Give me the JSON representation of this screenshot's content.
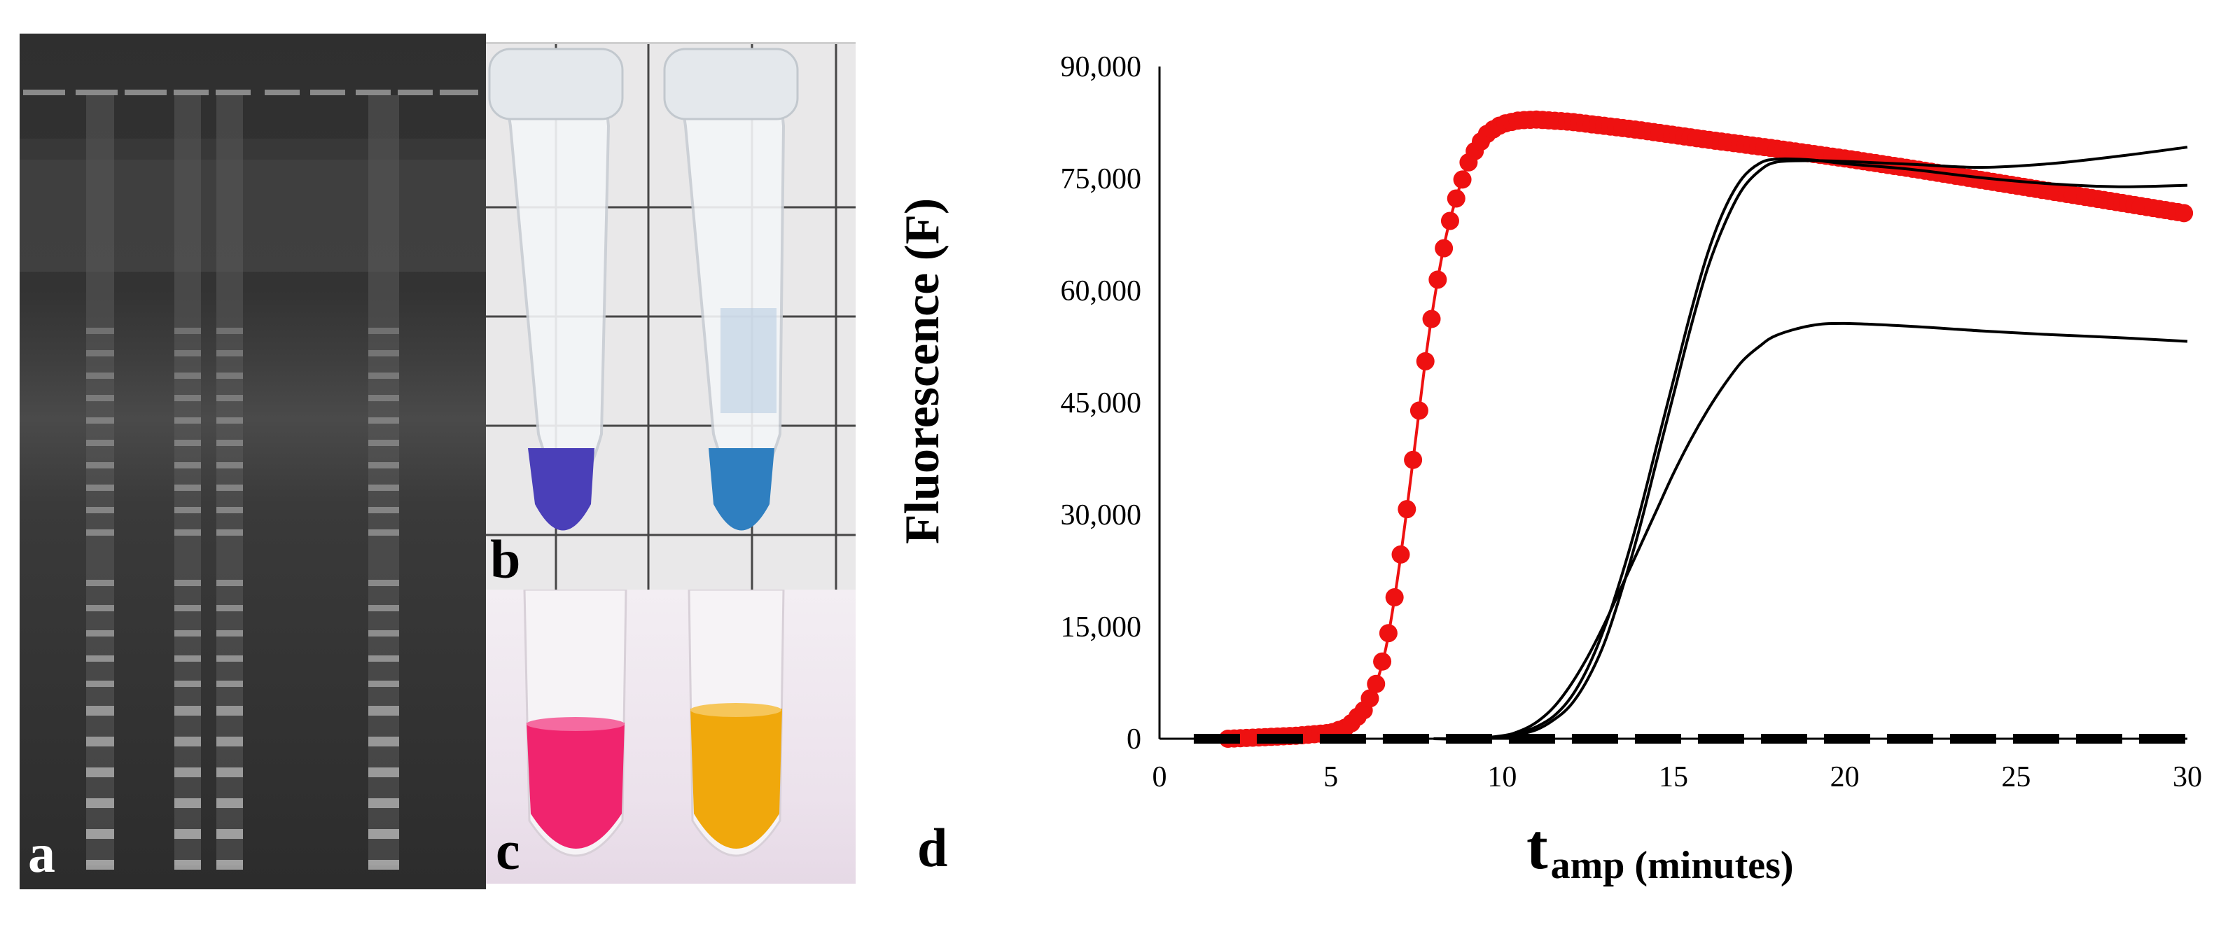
{
  "panels": {
    "a": {
      "letter": "a"
    },
    "b": {
      "letter": "b"
    },
    "c": {
      "letter": "c"
    },
    "d": {
      "letter": "d"
    }
  },
  "colors": {
    "gel_background": "#2f2f2f",
    "tube_blue_left": "#4a3fb8",
    "tube_blue_right": "#2f7fc0",
    "tube_pink": "#f0246e",
    "tube_yellow": "#f0a80c",
    "red_series": "#ee1111",
    "black_series": "#000000"
  },
  "chart_data": {
    "type": "line",
    "title": "",
    "xlabel_main": "t",
    "xlabel_sub": "amp (minutes)",
    "ylabel": "Fluorescence  (F)",
    "xlim": [
      0,
      30
    ],
    "ylim": [
      0,
      90000
    ],
    "xticks": [
      0,
      5,
      10,
      15,
      20,
      25,
      30
    ],
    "xtick_labels": [
      "0",
      "5",
      "10",
      "15",
      "20",
      "25",
      "30"
    ],
    "yticks": [
      0,
      15000,
      30000,
      45000,
      60000,
      75000,
      90000
    ],
    "ytick_labels": [
      "0",
      "15,000",
      "30,000",
      "45,000",
      "60,000",
      "75,000",
      "90,000"
    ],
    "grid": false,
    "series": [
      {
        "name": "red markers",
        "style": "line+markers",
        "color": "#ee1111",
        "x": [
          2.0,
          3.0,
          4.0,
          5.0,
          5.5,
          6.0,
          6.3,
          6.6,
          6.9,
          7.2,
          7.5,
          7.8,
          8.1,
          8.4,
          8.7,
          9.0,
          9.3,
          9.6,
          10.0,
          10.5,
          11.0,
          12.0,
          14.0,
          16.0,
          18.0,
          20.0,
          22.0,
          24.0,
          26.0,
          28.0,
          30.0
        ],
        "y": [
          0,
          200,
          400,
          800,
          1600,
          4000,
          7000,
          12000,
          20000,
          30000,
          41000,
          52000,
          61000,
          68000,
          73000,
          77000,
          79500,
          81200,
          82300,
          82800,
          82900,
          82600,
          81500,
          80200,
          79000,
          77700,
          76300,
          74800,
          73300,
          71800,
          70300
        ]
      },
      {
        "name": "black curve 1",
        "style": "line",
        "color": "#000000",
        "x": [
          8,
          9,
          10,
          10.5,
          11,
          11.5,
          12,
          12.5,
          13,
          13.5,
          14,
          14.5,
          15,
          15.5,
          16,
          16.5,
          17,
          17.5,
          18,
          19,
          20,
          22,
          24,
          26,
          28,
          30
        ],
        "y": [
          0,
          0,
          200,
          600,
          1200,
          2500,
          4500,
          8000,
          13000,
          20000,
          28000,
          37000,
          46000,
          55000,
          63000,
          69000,
          73500,
          76000,
          77200,
          77400,
          77300,
          76900,
          76500,
          77000,
          78000,
          79200
        ]
      },
      {
        "name": "black curve 2",
        "style": "line",
        "color": "#000000",
        "x": [
          8,
          9,
          10,
          10.5,
          11,
          11.5,
          12,
          12.5,
          13,
          13.5,
          14,
          14.5,
          15,
          15.5,
          16,
          16.5,
          17,
          17.5,
          18,
          19,
          20,
          22,
          24,
          26,
          28,
          30
        ],
        "y": [
          0,
          0,
          300,
          800,
          1600,
          3000,
          5500,
          9500,
          15000,
          22000,
          30000,
          39000,
          48000,
          57000,
          65000,
          71000,
          75000,
          77000,
          77600,
          77500,
          77000,
          76200,
          75100,
          74300,
          73900,
          74100
        ]
      },
      {
        "name": "black curve 3",
        "style": "line",
        "color": "#000000",
        "x": [
          8,
          9,
          10,
          10.5,
          11,
          11.5,
          12,
          12.5,
          13,
          13.5,
          14,
          14.5,
          15,
          15.5,
          16,
          16.5,
          17,
          17.5,
          18,
          19,
          20,
          22,
          24,
          26,
          28,
          30
        ],
        "y": [
          0,
          0,
          400,
          1000,
          2200,
          4200,
          7200,
          11000,
          15500,
          20500,
          25500,
          30500,
          35500,
          40000,
          44000,
          47500,
          50500,
          52500,
          54000,
          55300,
          55600,
          55200,
          54600,
          54100,
          53700,
          53200
        ]
      },
      {
        "name": "black dashed baseline",
        "style": "dashed",
        "color": "#000000",
        "x": [
          1,
          30
        ],
        "y": [
          0,
          0
        ]
      }
    ]
  }
}
